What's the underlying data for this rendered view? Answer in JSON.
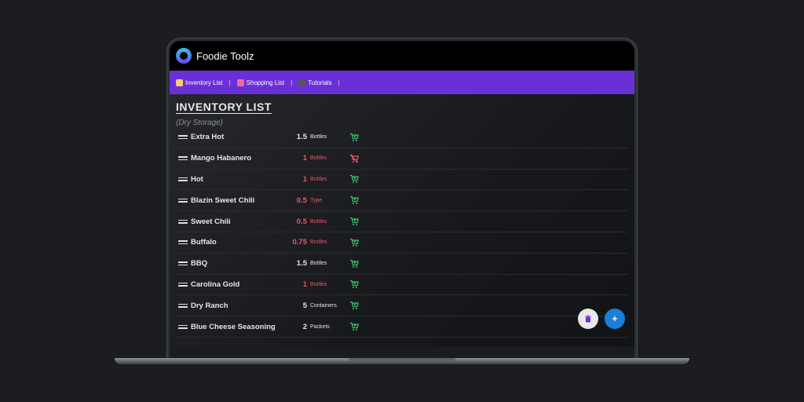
{
  "app": {
    "title": "Foodie Toolz"
  },
  "nav": {
    "items": [
      {
        "label": "Inventory List",
        "icon": "memo-icon",
        "color": "#f4d06f"
      },
      {
        "label": "Shopping List",
        "icon": "shopping-bags-icon",
        "color": "#f06aa0"
      },
      {
        "label": "Tutorials",
        "icon": "graduation-cap-icon",
        "color": "#444"
      }
    ],
    "separator": "|"
  },
  "page": {
    "title": "INVENTORY LIST",
    "section": "(Dry Storage)"
  },
  "inventory": [
    {
      "name": "Extra Hot",
      "qty": "1.5",
      "unit": "Bottles",
      "low": false,
      "cart": "add"
    },
    {
      "name": "Mango Habanero",
      "qty": "1",
      "unit": "Bottles",
      "low": true,
      "cart": "remove"
    },
    {
      "name": "Hot",
      "qty": "1",
      "unit": "Bottles",
      "low": true,
      "cart": "add"
    },
    {
      "name": "Blazin Sweet Chili",
      "qty": "0.5",
      "unit": "Type",
      "low": true,
      "cart": "add"
    },
    {
      "name": "Sweet Chili",
      "qty": "0.5",
      "unit": "Bottles",
      "low": true,
      "cart": "add"
    },
    {
      "name": "Buffalo",
      "qty": "0.75",
      "unit": "Bottles",
      "low": true,
      "cart": "add"
    },
    {
      "name": "BBQ",
      "qty": "1.5",
      "unit": "Bottles",
      "low": false,
      "cart": "add"
    },
    {
      "name": "Carolina Gold",
      "qty": "1",
      "unit": "Bottles",
      "low": true,
      "cart": "add"
    },
    {
      "name": "Dry Ranch",
      "qty": "5",
      "unit": "Containers",
      "low": false,
      "cart": "add"
    },
    {
      "name": "Blue Cheese Seasoning",
      "qty": "2",
      "unit": "Packets",
      "low": false,
      "cart": "add"
    }
  ],
  "fabs": {
    "delete_icon": "trash-icon",
    "add_label": "+"
  },
  "colors": {
    "accent": "#6a30d8",
    "low_stock": "#e8566c",
    "cart_add": "#3ec46d",
    "cart_remove": "#e8566c",
    "fab_add": "#1a7fd8"
  }
}
